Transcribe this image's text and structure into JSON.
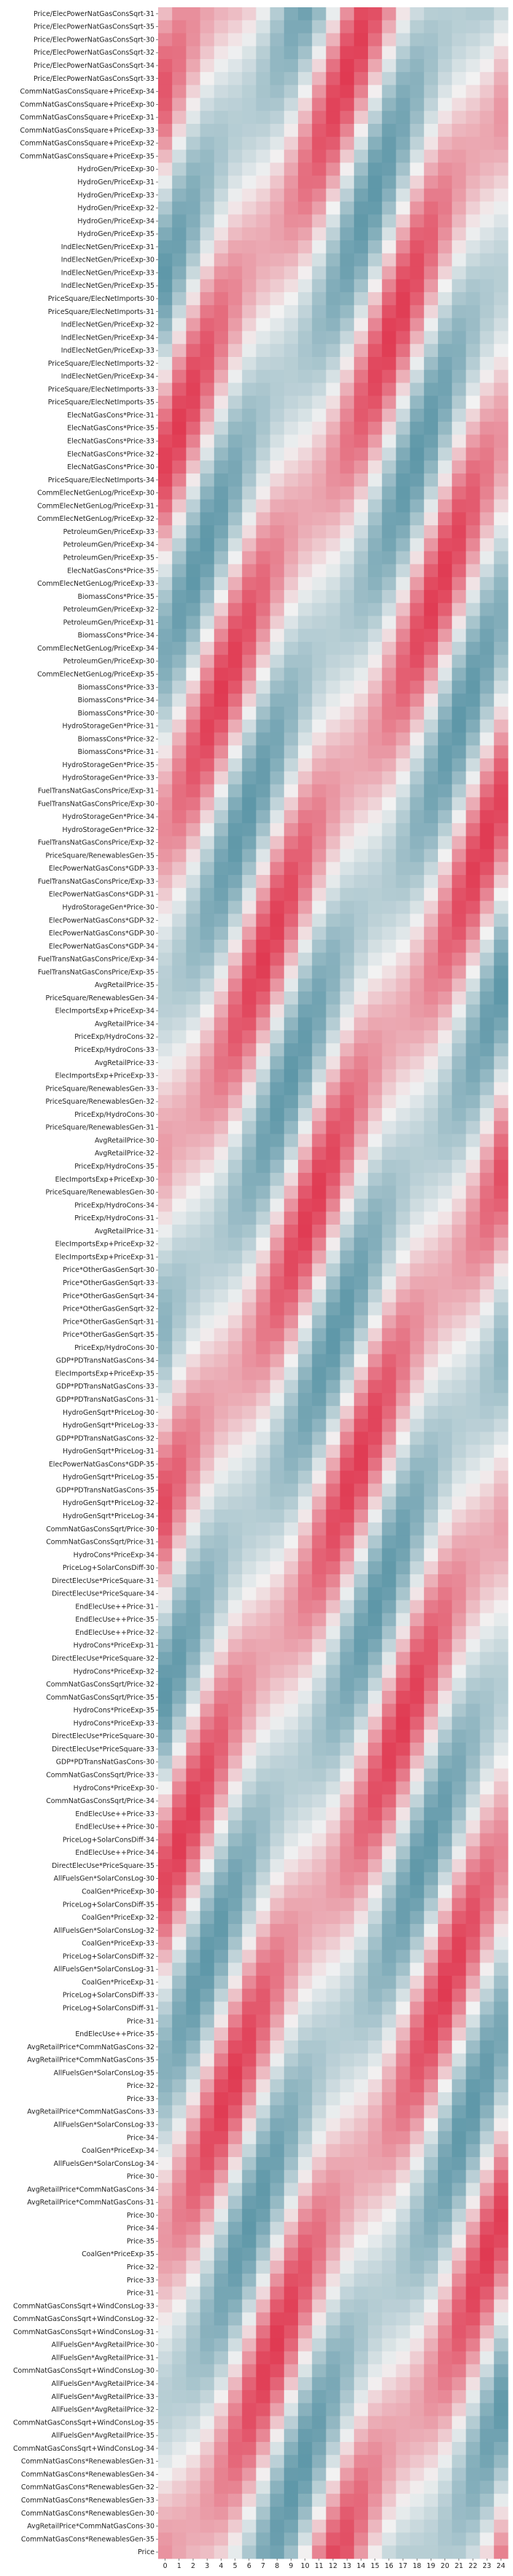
{
  "chart_data": {
    "type": "heatmap",
    "title": "",
    "xlabel": "",
    "ylabel": "",
    "colormap": {
      "low": "#5e97a8",
      "mid": "#f2f2f2",
      "high": "#e03a52"
    },
    "colorbar": false,
    "x_labels": [
      "0",
      "1",
      "2",
      "3",
      "4",
      "5",
      "6",
      "7",
      "8",
      "9",
      "10",
      "11",
      "12",
      "13",
      "14",
      "15",
      "16",
      "17",
      "18",
      "19",
      "20",
      "21",
      "22",
      "23",
      "24"
    ],
    "y_labels": [
      "Price/ElecPowerNatGasConsSqrt-31",
      "Price/ElecPowerNatGasConsSqrt-35",
      "Price/ElecPowerNatGasConsSqrt-30",
      "Price/ElecPowerNatGasConsSqrt-32",
      "Price/ElecPowerNatGasConsSqrt-34",
      "Price/ElecPowerNatGasConsSqrt-33",
      "CommNatGasConsSquare+PriceExp-34",
      "CommNatGasConsSquare+PriceExp-30",
      "CommNatGasConsSquare+PriceExp-31",
      "CommNatGasConsSquare+PriceExp-33",
      "CommNatGasConsSquare+PriceExp-32",
      "CommNatGasConsSquare+PriceExp-35",
      "HydroGen/PriceExp-30",
      "HydroGen/PriceExp-31",
      "HydroGen/PriceExp-33",
      "HydroGen/PriceExp-32",
      "HydroGen/PriceExp-34",
      "HydroGen/PriceExp-35",
      "IndElecNetGen/PriceExp-31",
      "IndElecNetGen/PriceExp-30",
      "IndElecNetGen/PriceExp-33",
      "IndElecNetGen/PriceExp-35",
      "PriceSquare/ElecNetImports-30",
      "PriceSquare/ElecNetImports-31",
      "IndElecNetGen/PriceExp-32",
      "IndElecNetGen/PriceExp-34",
      "IndElecNetGen/PriceExp-33",
      "PriceSquare/ElecNetImports-32",
      "IndElecNetGen/PriceExp-34",
      "PriceSquare/ElecNetImports-33",
      "PriceSquare/ElecNetImports-35",
      "ElecNatGasCons*Price-31",
      "ElecNatGasCons*Price-35",
      "ElecNatGasCons*Price-33",
      "ElecNatGasCons*Price-32",
      "ElecNatGasCons*Price-30",
      "PriceSquare/ElecNetImports-34",
      "CommElecNetGenLog/PriceExp-30",
      "CommElecNetGenLog/PriceExp-31",
      "CommElecNetGenLog/PriceExp-32",
      "PetroleumGen/PriceExp-33",
      "PetroleumGen/PriceExp-34",
      "PetroleumGen/PriceExp-35",
      "ElecNatGasCons*Price-35",
      "CommElecNetGenLog/PriceExp-33",
      "BiomassCons*Price-35",
      "PetroleumGen/PriceExp-32",
      "PetroleumGen/PriceExp-31",
      "BiomassCons*Price-34",
      "CommElecNetGenLog/PriceExp-34",
      "PetroleumGen/PriceExp-30",
      "CommElecNetGenLog/PriceExp-35",
      "BiomassCons*Price-33",
      "BiomassCons*Price-34",
      "BiomassCons*Price-30",
      "HydroStorageGen*Price-31",
      "BiomassCons*Price-32",
      "BiomassCons*Price-31",
      "HydroStorageGen*Price-35",
      "HydroStorageGen*Price-33",
      "FuelTransNatGasConsPrice/Exp-31",
      "FuelTransNatGasConsPrice/Exp-30",
      "HydroStorageGen*Price-34",
      "HydroStorageGen*Price-32",
      "FuelTransNatGasConsPrice/Exp-32",
      "PriceSquare/RenewablesGen-35",
      "ElecPowerNatGasCons*GDP-33",
      "FuelTransNatGasConsPrice/Exp-33",
      "ElecPowerNatGasCons*GDP-31",
      "HydroStorageGen*Price-30",
      "ElecPowerNatGasCons*GDP-32",
      "ElecPowerNatGasCons*GDP-30",
      "ElecPowerNatGasCons*GDP-34",
      "FuelTransNatGasConsPrice/Exp-34",
      "FuelTransNatGasConsPrice/Exp-35",
      "AvgRetailPrice-35",
      "PriceSquare/RenewablesGen-34",
      "ElecImportsExp+PriceExp-34",
      "AvgRetailPrice-34",
      "PriceExp/HydroCons-32",
      "PriceExp/HydroCons-33",
      "AvgRetailPrice-33",
      "ElecImportsExp+PriceExp-33",
      "PriceSquare/RenewablesGen-33",
      "PriceSquare/RenewablesGen-32",
      "PriceExp/HydroCons-30",
      "PriceSquare/RenewablesGen-31",
      "AvgRetailPrice-30",
      "AvgRetailPrice-32",
      "PriceExp/HydroCons-35",
      "ElecImportsExp+PriceExp-30",
      "PriceSquare/RenewablesGen-30",
      "PriceExp/HydroCons-34",
      "PriceExp/HydroCons-31",
      "AvgRetailPrice-31",
      "ElecImportsExp+PriceExp-32",
      "ElecImportsExp+PriceExp-31",
      "Price*OtherGasGenSqrt-30",
      "Price*OtherGasGenSqrt-33",
      "Price*OtherGasGenSqrt-34",
      "Price*OtherGasGenSqrt-32",
      "Price*OtherGasGenSqrt-31",
      "Price*OtherGasGenSqrt-35",
      "PriceExp/HydroCons-30",
      "GDP*PDTransNatGasCons-34",
      "ElecImportsExp+PriceExp-35",
      "GDP*PDTransNatGasCons-33",
      "GDP*PDTransNatGasCons-31",
      "HydroGenSqrt*PriceLog-30",
      "HydroGenSqrt*PriceLog-33",
      "GDP*PDTransNatGasCons-32",
      "HydroGenSqrt*PriceLog-31",
      "ElecPowerNatGasCons*GDP-35",
      "HydroGenSqrt*PriceLog-35",
      "GDP*PDTransNatGasCons-35",
      "HydroGenSqrt*PriceLog-32",
      "HydroGenSqrt*PriceLog-34",
      "CommNatGasConsSqrt/Price-30",
      "CommNatGasConsSqrt/Price-31",
      "HydroCons*PriceExp-34",
      "PriceLog+SolarConsDiff-30",
      "DirectElecUse*PriceSquare-31",
      "DirectElecUse*PriceSquare-34",
      "EndElecUse++Price-31",
      "EndElecUse++Price-35",
      "EndElecUse++Price-32",
      "HydroCons*PriceExp-31",
      "DirectElecUse*PriceSquare-32",
      "HydroCons*PriceExp-32",
      "CommNatGasConsSqrt/Price-32",
      "CommNatGasConsSqrt/Price-35",
      "HydroCons*PriceExp-35",
      "HydroCons*PriceExp-33",
      "DirectElecUse*PriceSquare-30",
      "DirectElecUse*PriceSquare-33",
      "GDP*PDTransNatGasCons-30",
      "CommNatGasConsSqrt/Price-33",
      "HydroCons*PriceExp-30",
      "CommNatGasConsSqrt/Price-34",
      "EndElecUse++Price-33",
      "EndElecUse++Price-30",
      "PriceLog+SolarConsDiff-34",
      "EndElecUse++Price-34",
      "DirectElecUse*PriceSquare-35",
      "AllFuelsGen*SolarConsLog-30",
      "CoalGen*PriceExp-30",
      "PriceLog+SolarConsDiff-35",
      "CoalGen*PriceExp-32",
      "AllFuelsGen*SolarConsLog-32",
      "CoalGen*PriceExp-33",
      "PriceLog+SolarConsDiff-32",
      "AllFuelsGen*SolarConsLog-31",
      "CoalGen*PriceExp-31",
      "PriceLog+SolarConsDiff-33",
      "PriceLog+SolarConsDiff-31",
      "Price-31",
      "EndElecUse++Price-35",
      "AvgRetailPrice*CommNatGasCons-32",
      "AvgRetailPrice*CommNatGasCons-35",
      "AllFuelsGen*SolarConsLog-35",
      "Price-32",
      "Price-33",
      "AvgRetailPrice*CommNatGasCons-33",
      "AllFuelsGen*SolarConsLog-33",
      "Price-34",
      "CoalGen*PriceExp-34",
      "AllFuelsGen*SolarConsLog-34",
      "Price-30",
      "AvgRetailPrice*CommNatGasCons-34",
      "AvgRetailPrice*CommNatGasCons-31",
      "Price-30",
      "Price-34",
      "Price-35",
      "CoalGen*PriceExp-35",
      "Price-32",
      "Price-33",
      "Price-31",
      "CommNatGasConsSqrt+WindConsLog-33",
      "CommNatGasConsSqrt+WindConsLog-32",
      "CommNatGasConsSqrt+WindConsLog-31",
      "AllFuelsGen*AvgRetailPrice-30",
      "AllFuelsGen*AvgRetailPrice-31",
      "CommNatGasConsSqrt+WindConsLog-30",
      "AllFuelsGen*AvgRetailPrice-34",
      "AllFuelsGen*AvgRetailPrice-33",
      "AllFuelsGen*AvgRetailPrice-32",
      "CommNatGasConsSqrt+WindConsLog-35",
      "AllFuelsGen*AvgRetailPrice-35",
      "CommNatGasConsSqrt+WindConsLog-34",
      "CommNatGasCons*RenewablesGen-31",
      "CommNatGasCons*RenewablesGen-34",
      "CommNatGasCons*RenewablesGen-32",
      "CommNatGasCons*RenewablesGen-33",
      "CommNatGasCons*RenewablesGen-30",
      "AvgRetailPrice*CommNatGasCons-30",
      "CommNatGasCons*RenewablesGen-35",
      "Price"
    ],
    "values": []
  }
}
